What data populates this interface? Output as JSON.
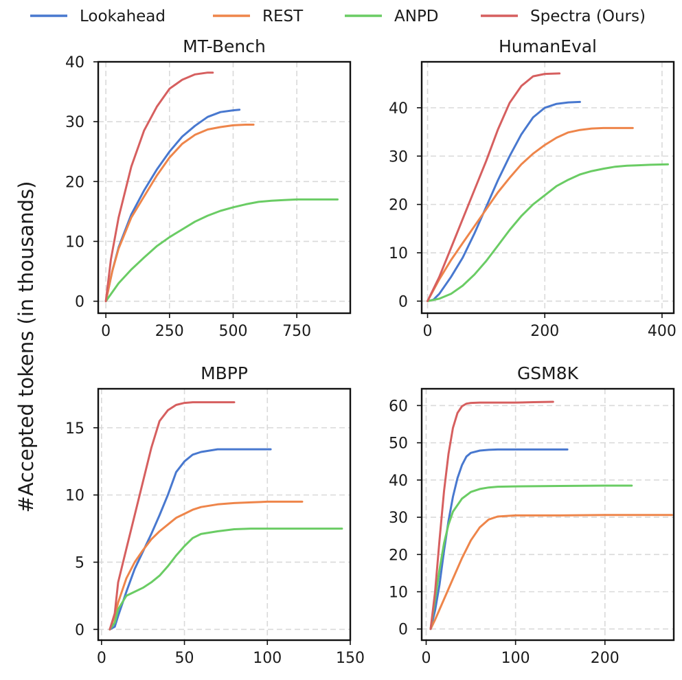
{
  "legend": [
    {
      "name": "Lookahead",
      "color": "#4878cf"
    },
    {
      "name": "REST",
      "color": "#ee854a"
    },
    {
      "name": "ANPD",
      "color": "#6acc64"
    },
    {
      "name": "Spectra (Ours)",
      "color": "#d65f5f"
    }
  ],
  "ylabel": "#Accepted tokens (in thousands)",
  "chart_data": [
    {
      "type": "line",
      "title": "MT-Bench",
      "xlabel": "",
      "ylabel": "#Accepted tokens (in thousands)",
      "xlim": [
        -30,
        960
      ],
      "ylim": [
        -2,
        40
      ],
      "xticks": [
        0,
        250,
        500,
        750
      ],
      "yticks": [
        0,
        10,
        20,
        30,
        40
      ],
      "grid": true,
      "series": [
        {
          "name": "Lookahead",
          "x": [
            0,
            25,
            50,
            100,
            150,
            200,
            250,
            300,
            350,
            400,
            450,
            500,
            525
          ],
          "y": [
            0,
            5,
            9,
            14.5,
            18.5,
            22,
            25,
            27.5,
            29.3,
            30.8,
            31.6,
            31.9,
            32
          ]
        },
        {
          "name": "REST",
          "x": [
            0,
            25,
            50,
            100,
            150,
            200,
            250,
            300,
            350,
            400,
            450,
            500,
            550,
            580
          ],
          "y": [
            0,
            5,
            8.8,
            14,
            17.5,
            21,
            24,
            26.3,
            27.8,
            28.7,
            29.1,
            29.4,
            29.5,
            29.5
          ]
        },
        {
          "name": "ANPD",
          "x": [
            0,
            50,
            100,
            150,
            200,
            250,
            300,
            350,
            400,
            450,
            500,
            550,
            600,
            650,
            700,
            750,
            800,
            850,
            910
          ],
          "y": [
            0,
            3,
            5.3,
            7.3,
            9.2,
            10.7,
            12,
            13.3,
            14.3,
            15.1,
            15.7,
            16.2,
            16.6,
            16.8,
            16.9,
            17,
            17,
            17,
            17
          ]
        },
        {
          "name": "Spectra (Ours)",
          "x": [
            0,
            20,
            50,
            100,
            150,
            200,
            250,
            300,
            350,
            400,
            420
          ],
          "y": [
            0,
            7,
            14,
            22.5,
            28.5,
            32.5,
            35.5,
            37,
            37.9,
            38.2,
            38.2
          ]
        }
      ]
    },
    {
      "type": "line",
      "title": "HumanEval",
      "xlabel": "",
      "ylabel": "",
      "xlim": [
        -10,
        420
      ],
      "ylim": [
        -2.5,
        49.5
      ],
      "xticks": [
        0,
        200,
        400
      ],
      "yticks": [
        0,
        10,
        20,
        30,
        40
      ],
      "grid": true,
      "series": [
        {
          "name": "Lookahead",
          "x": [
            0,
            10,
            20,
            40,
            60,
            80,
            100,
            120,
            140,
            160,
            180,
            200,
            220,
            240,
            260
          ],
          "y": [
            0,
            0.3,
            1.5,
            5,
            9,
            14,
            19.5,
            25,
            30,
            34.5,
            38,
            40,
            40.8,
            41.1,
            41.2
          ]
        },
        {
          "name": "REST",
          "x": [
            0,
            20,
            40,
            60,
            80,
            100,
            120,
            140,
            160,
            180,
            200,
            220,
            240,
            260,
            280,
            300,
            320,
            350
          ],
          "y": [
            0,
            4.5,
            8.5,
            12,
            15.5,
            19,
            22.5,
            25.5,
            28.3,
            30.5,
            32.3,
            33.8,
            34.9,
            35.4,
            35.7,
            35.8,
            35.8,
            35.8
          ]
        },
        {
          "name": "ANPD",
          "x": [
            0,
            20,
            40,
            60,
            80,
            100,
            120,
            140,
            160,
            180,
            200,
            220,
            240,
            260,
            280,
            300,
            320,
            340,
            360,
            380,
            410
          ],
          "y": [
            0,
            0.5,
            1.5,
            3.2,
            5.5,
            8.3,
            11.5,
            14.7,
            17.6,
            20,
            21.9,
            23.8,
            25.1,
            26.2,
            26.9,
            27.4,
            27.8,
            28,
            28.1,
            28.2,
            28.3
          ]
        },
        {
          "name": "Spectra (Ours)",
          "x": [
            0,
            20,
            40,
            60,
            80,
            100,
            120,
            140,
            160,
            180,
            200,
            225
          ],
          "y": [
            0,
            5,
            11,
            17,
            23,
            29,
            35.5,
            41,
            44.5,
            46.5,
            47,
            47.1
          ]
        }
      ]
    },
    {
      "type": "line",
      "title": "MBPP",
      "xlabel": "",
      "ylabel": "",
      "xlim": [
        -2,
        150
      ],
      "ylim": [
        -0.8,
        17.9
      ],
      "xticks": [
        0,
        50,
        100,
        150
      ],
      "yticks": [
        0,
        5,
        10,
        15
      ],
      "grid": true,
      "series": [
        {
          "name": "Lookahead",
          "x": [
            5,
            8,
            10,
            15,
            20,
            25,
            30,
            35,
            40,
            45,
            50,
            55,
            60,
            70,
            80,
            90,
            102
          ],
          "y": [
            0,
            0.2,
            1,
            2.8,
            4.5,
            5.8,
            7.1,
            8.5,
            10,
            11.7,
            12.5,
            13,
            13.2,
            13.4,
            13.4,
            13.4,
            13.4
          ]
        },
        {
          "name": "REST",
          "x": [
            5,
            8,
            10,
            15,
            20,
            25,
            30,
            35,
            40,
            45,
            50,
            55,
            60,
            70,
            80,
            90,
            100,
            110,
            121
          ],
          "y": [
            0,
            1,
            2,
            3.8,
            5,
            5.9,
            6.7,
            7.3,
            7.8,
            8.3,
            8.6,
            8.9,
            9.1,
            9.3,
            9.4,
            9.45,
            9.5,
            9.5,
            9.5
          ]
        },
        {
          "name": "ANPD",
          "x": [
            5,
            8,
            10,
            15,
            20,
            25,
            30,
            35,
            40,
            45,
            50,
            55,
            60,
            70,
            80,
            90,
            100,
            110,
            120,
            130,
            145
          ],
          "y": [
            0,
            0.5,
            1.5,
            2.5,
            2.8,
            3.1,
            3.5,
            4,
            4.7,
            5.5,
            6.2,
            6.8,
            7.1,
            7.3,
            7.45,
            7.5,
            7.5,
            7.5,
            7.5,
            7.5,
            7.5
          ]
        },
        {
          "name": "Spectra (Ours)",
          "x": [
            5,
            8,
            10,
            15,
            20,
            25,
            30,
            35,
            40,
            45,
            50,
            55,
            60,
            70,
            80
          ],
          "y": [
            0,
            1.2,
            3.5,
            6,
            8.5,
            11,
            13.5,
            15.5,
            16.3,
            16.7,
            16.85,
            16.9,
            16.9,
            16.9,
            16.9
          ]
        }
      ]
    },
    {
      "type": "line",
      "title": "GSM8K",
      "xlabel": "",
      "ylabel": "",
      "xlim": [
        -5,
        277
      ],
      "ylim": [
        -3,
        64.5
      ],
      "xticks": [
        0,
        100,
        200
      ],
      "yticks": [
        0,
        10,
        20,
        30,
        40,
        50,
        60
      ],
      "grid": true,
      "series": [
        {
          "name": "Lookahead",
          "x": [
            5,
            10,
            15,
            20,
            25,
            30,
            35,
            40,
            45,
            50,
            60,
            70,
            80,
            100,
            120,
            140,
            158
          ],
          "y": [
            0,
            5,
            12,
            21,
            29,
            35.5,
            40.5,
            44,
            46.3,
            47.3,
            47.9,
            48.1,
            48.2,
            48.2,
            48.2,
            48.2,
            48.2
          ]
        },
        {
          "name": "REST",
          "x": [
            5,
            10,
            20,
            30,
            40,
            50,
            60,
            70,
            80,
            100,
            120,
            150,
            200,
            250,
            275
          ],
          "y": [
            0,
            2.5,
            8,
            13.5,
            19,
            23.8,
            27.3,
            29.4,
            30.2,
            30.5,
            30.5,
            30.5,
            30.6,
            30.6,
            30.6
          ]
        },
        {
          "name": "ANPD",
          "x": [
            5,
            10,
            15,
            20,
            25,
            30,
            40,
            50,
            60,
            70,
            80,
            100,
            150,
            200,
            230
          ],
          "y": [
            0,
            8,
            16,
            23,
            28,
            31.5,
            35,
            36.8,
            37.6,
            38,
            38.2,
            38.3,
            38.4,
            38.5,
            38.5
          ]
        },
        {
          "name": "Spectra (Ours)",
          "x": [
            5,
            10,
            15,
            20,
            25,
            30,
            35,
            40,
            45,
            50,
            60,
            70,
            80,
            100,
            120,
            142
          ],
          "y": [
            0,
            10,
            24,
            37,
            47,
            54,
            58,
            59.8,
            60.5,
            60.7,
            60.8,
            60.8,
            60.8,
            60.8,
            60.9,
            61
          ]
        }
      ]
    }
  ]
}
